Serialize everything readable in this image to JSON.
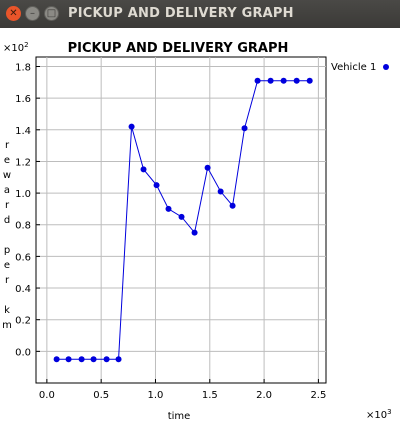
{
  "window": {
    "title": "PICKUP AND DELIVERY GRAPH",
    "close_glyph": "✕",
    "min_glyph": "–",
    "max_glyph": "□"
  },
  "chart_data": {
    "type": "line",
    "title": "PICKUP AND DELIVERY GRAPH",
    "xlabel": "time",
    "ylabel": "reward per km",
    "x_multiplier": "×10",
    "x_multiplier_exp": "3",
    "y_multiplier": "×10",
    "y_multiplier_exp": "2",
    "xlim": [
      -0.1,
      2.57
    ],
    "ylim": [
      -0.2,
      1.86
    ],
    "x_ticks": [
      0.0,
      0.5,
      1.0,
      1.5,
      2.0,
      2.5
    ],
    "x_tick_labels": [
      "0.0",
      "0.5",
      "1.0",
      "1.5",
      "2.0",
      "2.5"
    ],
    "y_ticks": [
      0.0,
      0.2,
      0.4,
      0.6,
      0.8,
      1.0,
      1.2,
      1.4,
      1.6,
      1.8
    ],
    "y_tick_labels": [
      "0.0",
      "0.2",
      "0.4",
      "0.6",
      "0.8",
      "1.0",
      "1.2",
      "1.4",
      "1.6",
      "1.8"
    ],
    "grid": true,
    "legend_position": "right",
    "series": [
      {
        "name": "Vehicle 1",
        "color": "#0000dd",
        "x": [
          0.09,
          0.2,
          0.32,
          0.43,
          0.55,
          0.66,
          0.78,
          0.89,
          1.01,
          1.12,
          1.24,
          1.36,
          1.48,
          1.6,
          1.71,
          1.82,
          1.94,
          2.06,
          2.18,
          2.3,
          2.42
        ],
        "y": [
          -0.05,
          -0.05,
          -0.05,
          -0.05,
          -0.05,
          -0.05,
          1.42,
          1.15,
          1.05,
          0.9,
          0.85,
          0.75,
          1.16,
          1.01,
          0.92,
          1.41,
          1.71,
          1.71,
          1.71,
          1.71,
          1.71
        ]
      }
    ]
  }
}
